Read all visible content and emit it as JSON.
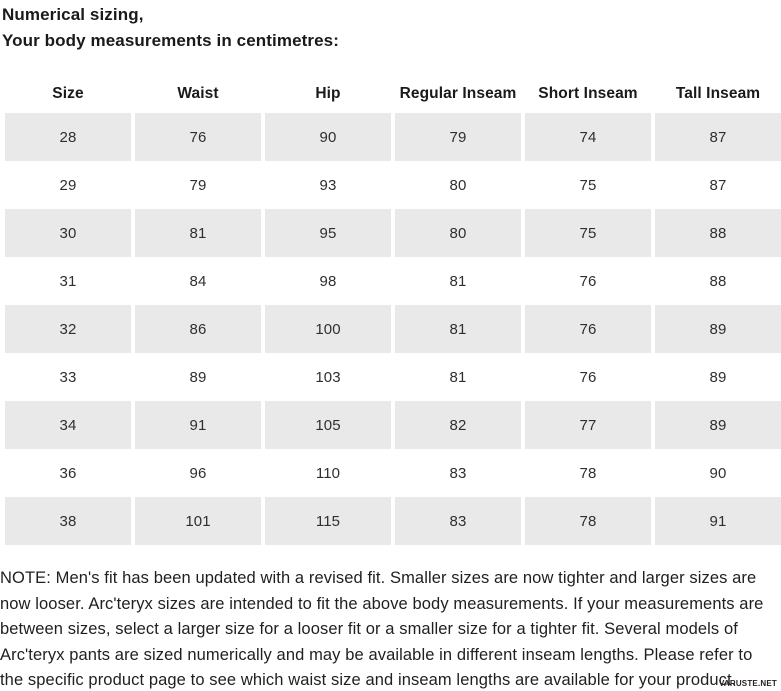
{
  "title": {
    "line1": "Numerical sizing,",
    "line2": "Your body measurements in centimetres:"
  },
  "table": {
    "headers": [
      "Size",
      "Waist",
      "Hip",
      "Regular Inseam",
      "Short Inseam",
      "Tall Inseam"
    ],
    "rows": [
      [
        "28",
        "76",
        "90",
        "79",
        "74",
        "87"
      ],
      [
        "29",
        "79",
        "93",
        "80",
        "75",
        "87"
      ],
      [
        "30",
        "81",
        "95",
        "80",
        "75",
        "88"
      ],
      [
        "31",
        "84",
        "98",
        "81",
        "76",
        "88"
      ],
      [
        "32",
        "86",
        "100",
        "81",
        "76",
        "89"
      ],
      [
        "33",
        "89",
        "103",
        "81",
        "76",
        "89"
      ],
      [
        "34",
        "91",
        "105",
        "82",
        "77",
        "89"
      ],
      [
        "36",
        "96",
        "110",
        "83",
        "78",
        "90"
      ],
      [
        "38",
        "101",
        "115",
        "83",
        "78",
        "91"
      ]
    ]
  },
  "note": "NOTE: Men's fit has been updated with a revised fit. Smaller sizes are now tighter and larger sizes are now looser. Arc'teryx sizes are intended to fit the above body measurements. If your measurements are between sizes, select a larger size for a looser fit or a smaller size for a tighter fit. Several models of Arc'teryx pants are sized numerically and may be available in different inseam lengths. Please refer to the specific product page to see which waist size and inseam lengths are available for your product.",
  "watermark": "VARUSTE.NET",
  "colors": {
    "row_shaded": "#e9e9e9",
    "text": "#1f1f1f"
  }
}
